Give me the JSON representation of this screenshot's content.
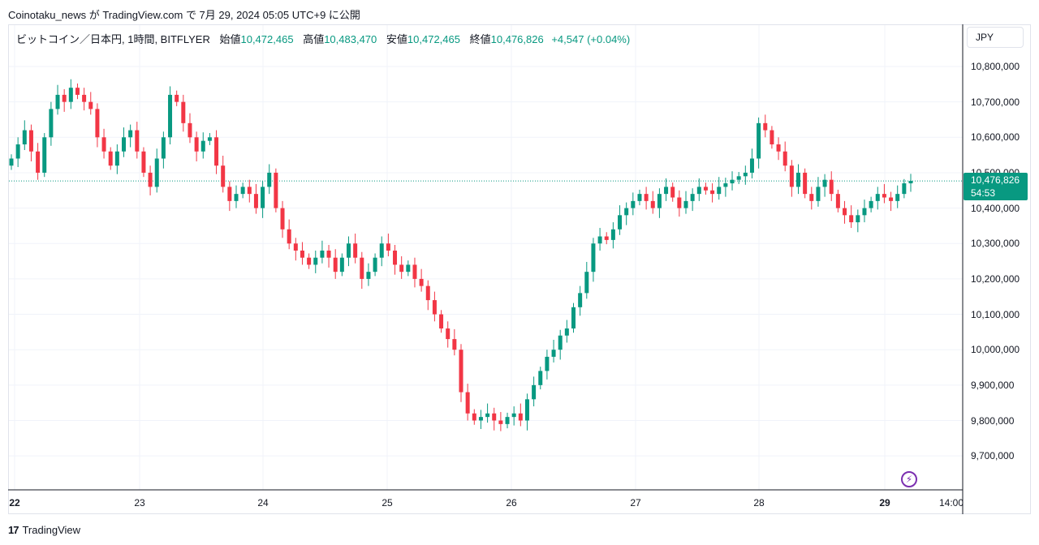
{
  "header": {
    "text": "Coinotaku_news が TradingView.com で 7月 29, 2024 05:05 UTC+9 に公開"
  },
  "legend": {
    "symbol": "ビットコイン／日本円, 1時間, BITFLYER",
    "open_label": "始値",
    "open": "10,472,465",
    "high_label": "高値",
    "high": "10,483,470",
    "low_label": "安値",
    "low": "10,472,465",
    "close_label": "終値",
    "close": "10,476,826",
    "change": "+4,547 (+0.04%)"
  },
  "currency_button": "JPY",
  "price_tag": {
    "price": "10,476,826",
    "countdown": "54:53"
  },
  "footer": {
    "brand": "TradingView",
    "logo_icon": "tradingview-logo-icon"
  },
  "colors": {
    "up": "#089981",
    "down": "#f23645",
    "grid": "#f0f3fa",
    "last_price_line": "#089981",
    "bolt": "#7b2fb0"
  },
  "chart_data": {
    "type": "candlestick",
    "interval": "1h",
    "ylim": [
      9600000,
      10850000
    ],
    "y_ticks": [
      "10,800,000",
      "10,700,000",
      "10,600,000",
      "10,500,000",
      "10,400,000",
      "10,300,000",
      "10,200,000",
      "10,100,000",
      "10,000,000",
      "9,900,000",
      "9,800,000",
      "9,700,000"
    ],
    "y_tick_values": [
      10800000,
      10700000,
      10600000,
      10500000,
      10400000,
      10300000,
      10200000,
      10100000,
      10000000,
      9900000,
      9800000,
      9700000
    ],
    "x_ticks": [
      "22",
      "23",
      "24",
      "25",
      "26",
      "27",
      "28",
      "29",
      "14:00"
    ],
    "last_price": 10476826,
    "close_series": [
      10540000,
      10580000,
      10620000,
      10560000,
      10500000,
      10600000,
      10680000,
      10720000,
      10700000,
      10740000,
      10720000,
      10700000,
      10680000,
      10600000,
      10560000,
      10520000,
      10560000,
      10600000,
      10620000,
      10560000,
      10500000,
      10460000,
      10540000,
      10600000,
      10720000,
      10700000,
      10640000,
      10600000,
      10560000,
      10590000,
      10600000,
      10520000,
      10460000,
      10420000,
      10440000,
      10460000,
      10440000,
      10400000,
      10460000,
      10500000,
      10400000,
      10340000,
      10300000,
      10280000,
      10260000,
      10240000,
      10260000,
      10280000,
      10260000,
      10220000,
      10260000,
      10300000,
      10260000,
      10200000,
      10220000,
      10260000,
      10300000,
      10280000,
      10240000,
      10220000,
      10240000,
      10200000,
      10180000,
      10140000,
      10100000,
      10060000,
      10030000,
      10000000,
      9880000,
      9820000,
      9800000,
      9810000,
      9820000,
      9800000,
      9790000,
      9810000,
      9820000,
      9800000,
      9860000,
      9900000,
      9940000,
      9980000,
      10000000,
      10040000,
      10060000,
      10120000,
      10160000,
      10220000,
      10300000,
      10320000,
      10310000,
      10340000,
      10380000,
      10400000,
      10420000,
      10440000,
      10420000,
      10400000,
      10440000,
      10460000,
      10430000,
      10400000,
      10420000,
      10440000,
      10460000,
      10450000,
      10440000,
      10460000,
      10470000,
      10480000,
      10490000,
      10500000,
      10540000,
      10640000,
      10620000,
      10580000,
      10560000,
      10520000,
      10460000,
      10500000,
      10440000,
      10420000,
      10460000,
      10480000,
      10440000,
      10400000,
      10380000,
      10360000,
      10380000,
      10400000,
      10420000,
      10440000,
      10430000,
      10420000,
      10440000,
      10470000,
      10476826
    ]
  }
}
